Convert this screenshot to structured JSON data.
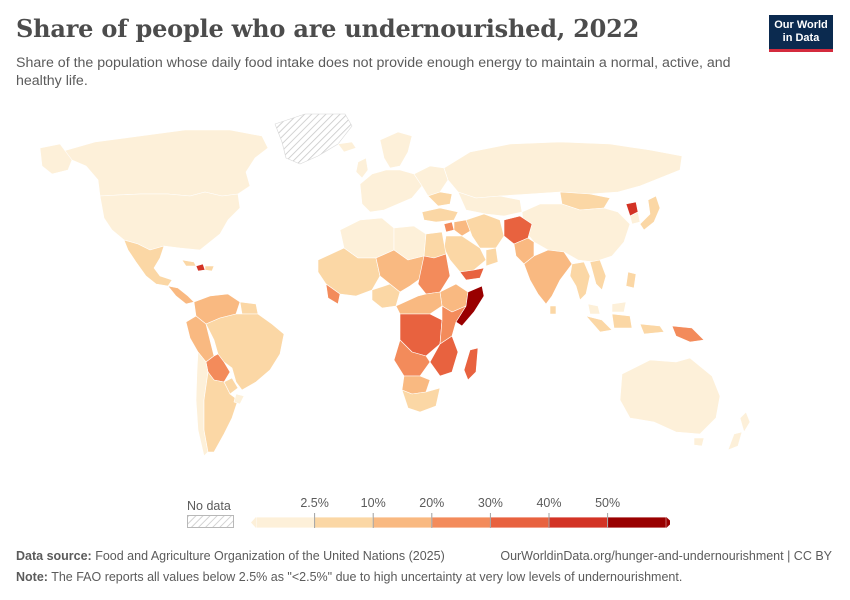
{
  "header": {
    "title": "Share of people who are undernourished, 2022",
    "subtitle": "Share of the population whose daily food intake does not provide enough energy to maintain a normal, active, and healthy life.",
    "logo_line1": "Our World",
    "logo_line2": "in Data"
  },
  "legend": {
    "no_data_label": "No data",
    "ticks": [
      "2.5%",
      "10%",
      "20%",
      "30%",
      "40%",
      "50%"
    ],
    "bin_colors": [
      "#fdf0d9",
      "#fbd7a5",
      "#f9b981",
      "#f38b5b",
      "#e8623f",
      "#d33325",
      "#990000"
    ]
  },
  "colors": {
    "no_data": "#f2f2f2",
    "border": "#ffffff",
    "background": "#ffffff"
  },
  "footer": {
    "source_label": "Data source:",
    "source_text": "Food and Agriculture Organization of the United Nations (2025)",
    "url": "OurWorldinData.org/hunger-and-undernourishment | CC BY",
    "note_label": "Note:",
    "note_text": "The FAO reports all values below 2.5% as \"<2.5%\" due to high uncertainty at very low levels of undernourishment."
  }
}
